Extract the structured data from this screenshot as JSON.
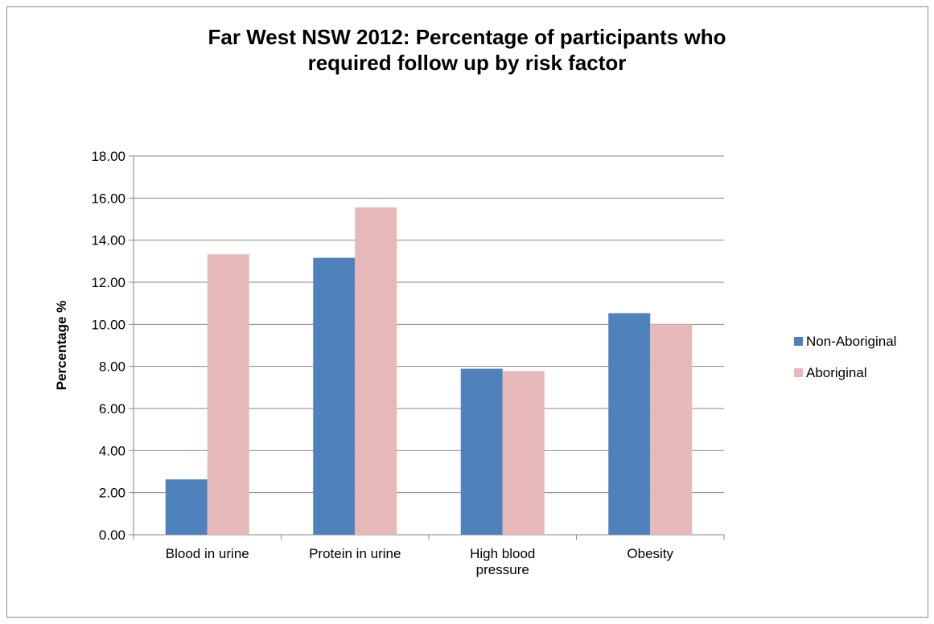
{
  "chart_data": {
    "type": "bar",
    "title_lines": [
      "Far West NSW 2012: Percentage of participants who",
      "required follow up by risk factor"
    ],
    "xlabel": "",
    "ylabel": "Percentage %",
    "categories": [
      [
        "Blood in urine"
      ],
      [
        "Protein in urine"
      ],
      [
        "High blood",
        "pressure"
      ],
      [
        "Obesity"
      ]
    ],
    "series": [
      {
        "name": "Non-Aboriginal",
        "color": "#4F81BD",
        "values": [
          2.63,
          13.16,
          7.89,
          10.53
        ]
      },
      {
        "name": "Aboriginal",
        "color": "#E6B9B8",
        "values": [
          13.33,
          15.56,
          7.78,
          10.0
        ]
      }
    ],
    "ylim": [
      0,
      18
    ],
    "ytick_step": 2,
    "ytick_decimals": 2,
    "grid": true,
    "legend_position": "right"
  }
}
